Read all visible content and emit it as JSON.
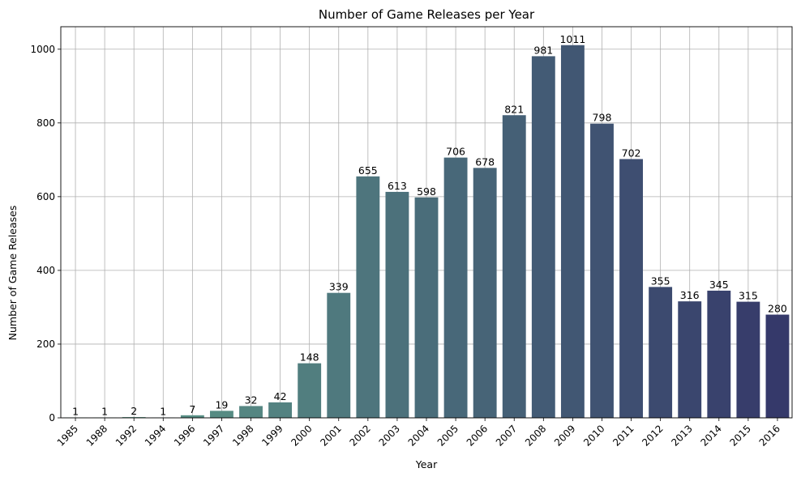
{
  "chart_data": {
    "type": "bar",
    "title": "Number of Game Releases per Year",
    "xlabel": "Year",
    "ylabel": "Number of Game Releases",
    "categories": [
      "1985",
      "1988",
      "1992",
      "1994",
      "1996",
      "1997",
      "1998",
      "1999",
      "2000",
      "2001",
      "2002",
      "2003",
      "2004",
      "2005",
      "2006",
      "2007",
      "2008",
      "2009",
      "2010",
      "2011",
      "2012",
      "2013",
      "2014",
      "2015",
      "2016"
    ],
    "values": [
      1,
      1,
      2,
      1,
      7,
      19,
      32,
      42,
      148,
      339,
      655,
      613,
      598,
      706,
      678,
      821,
      981,
      1011,
      798,
      702,
      355,
      316,
      345,
      315,
      280
    ],
    "ylim": [
      0,
      1061
    ],
    "yticks": [
      0,
      200,
      400,
      600,
      800,
      1000
    ],
    "grid": true,
    "data_labels": true,
    "palette_start": "#5fa08a",
    "palette_end": "#35396a"
  }
}
